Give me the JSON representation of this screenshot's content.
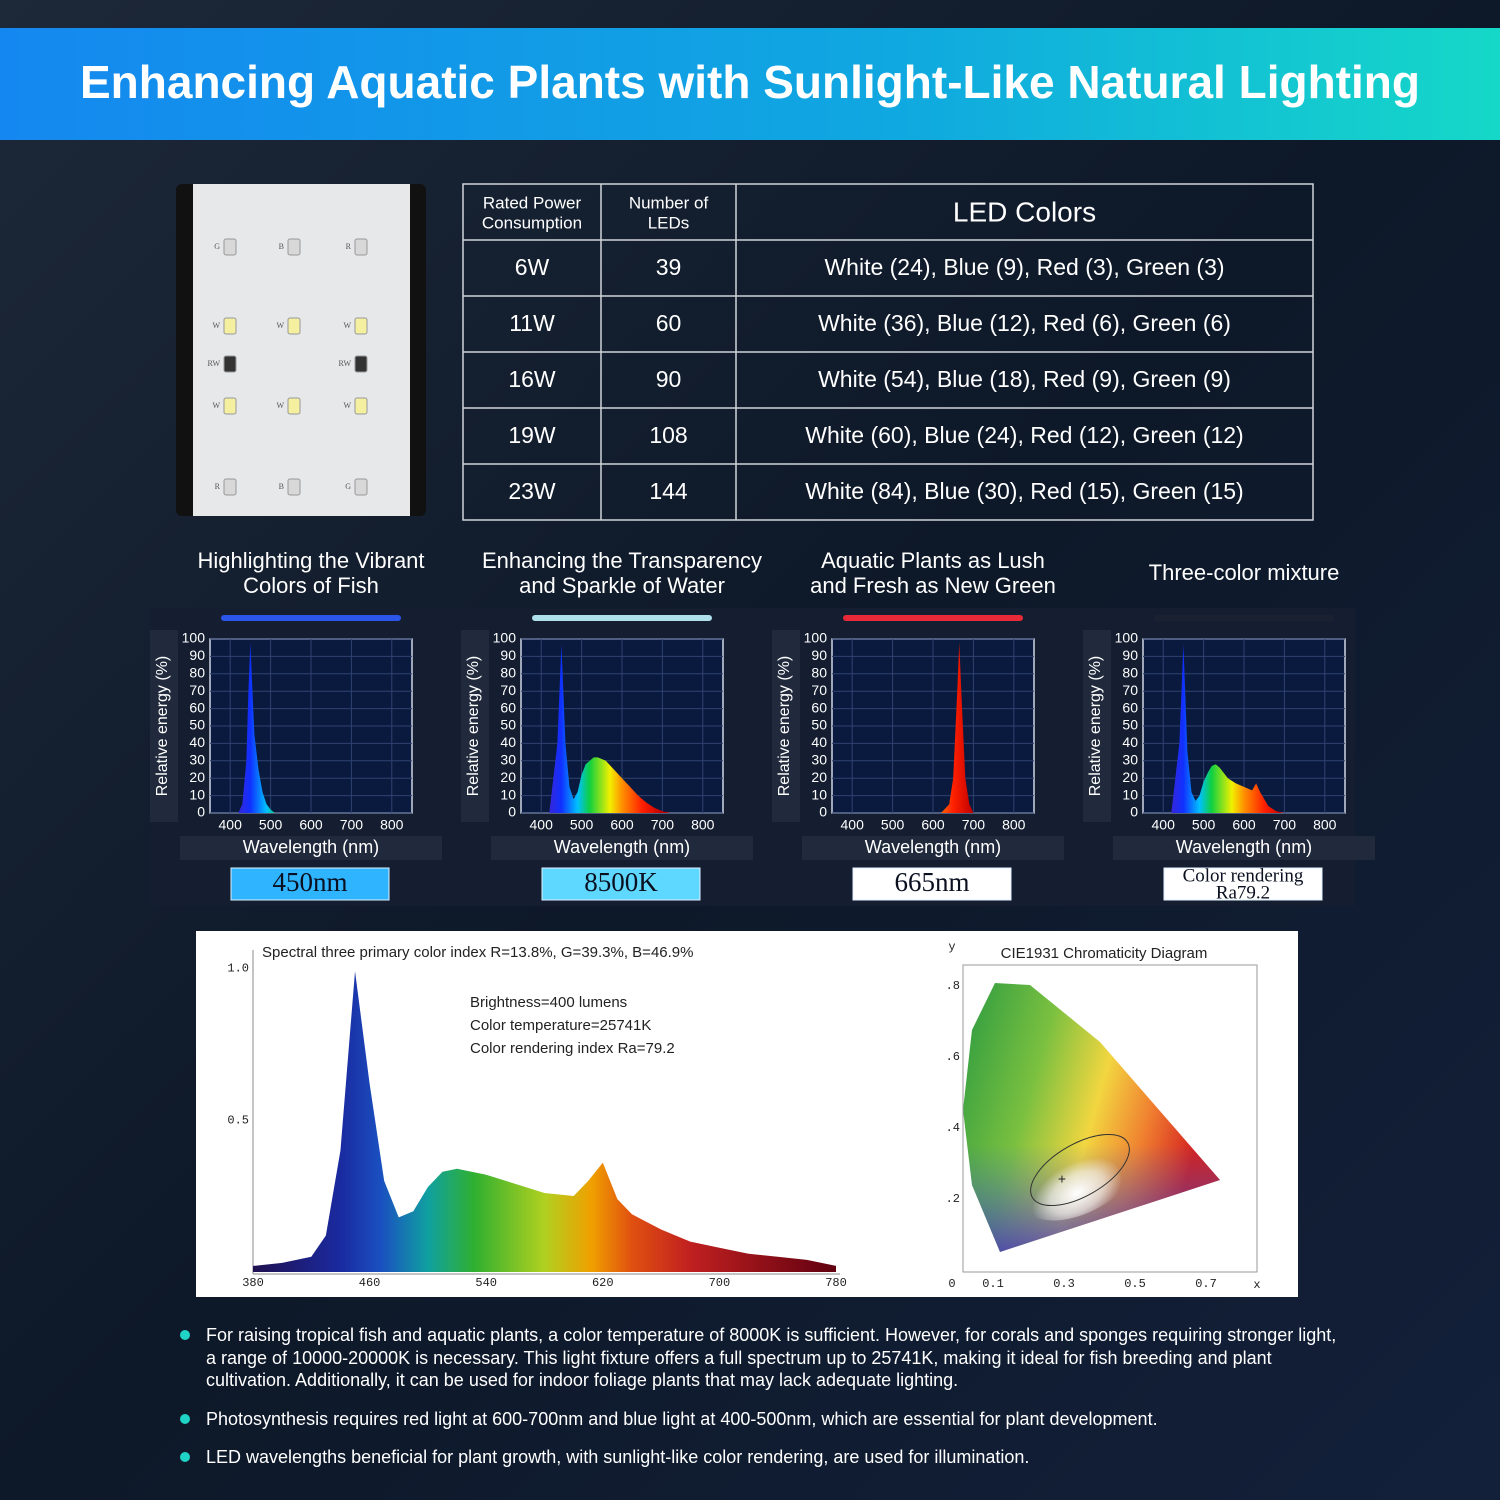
{
  "header": {
    "title": "Enhancing Aquatic Plants with Sunlight-Like Natural Lighting"
  },
  "led_panel": {
    "labels": [
      [
        "G",
        "B",
        "R"
      ],
      [
        "W",
        "W",
        "W"
      ],
      [
        "RW",
        "RW"
      ],
      [
        "W",
        "W",
        "W"
      ],
      [
        "R",
        "B",
        "G"
      ]
    ]
  },
  "table": {
    "headers": [
      [
        "Rated Power",
        "Consumption"
      ],
      [
        "Number of",
        "LEDs"
      ],
      [
        "LED Colors"
      ]
    ],
    "rows": [
      [
        "6W",
        "39",
        "White (24), Blue (9), Red (3), Green (3)"
      ],
      [
        "11W",
        "60",
        "White (36), Blue (12), Red (6), Green (6)"
      ],
      [
        "16W",
        "90",
        "White (54), Blue (18), Red (9), Green (9)"
      ],
      [
        "19W",
        "108",
        "White (60), Blue (24), Red (12), Green (12)"
      ],
      [
        "23W",
        "144",
        "White (84), Blue (30), Red (15), Green (15)"
      ]
    ]
  },
  "spectra": [
    {
      "caption": [
        "Highlighting the Vibrant",
        "Colors of Fish"
      ],
      "glow": "#2f5bff",
      "badge": [
        "450nm"
      ],
      "badge_color": "#2fb4ff",
      "y_label": "Relative energy (%)",
      "x_label": "Wavelength (nm)",
      "xlim": [
        350,
        850
      ],
      "ylim": [
        0,
        100
      ],
      "xticks": [
        400,
        500,
        600,
        700,
        800
      ],
      "yticks": [
        0,
        10,
        20,
        30,
        40,
        50,
        60,
        70,
        80,
        90,
        100
      ],
      "x": [
        420,
        430,
        440,
        445,
        450,
        455,
        460,
        470,
        480,
        490,
        500,
        510
      ],
      "values": [
        0,
        5,
        30,
        70,
        98,
        70,
        45,
        25,
        12,
        5,
        2,
        0
      ]
    },
    {
      "caption": [
        "Enhancing the Transparency",
        "and Sparkle of Water"
      ],
      "glow": "#bff4ff",
      "badge": [
        "8500K"
      ],
      "badge_color": "#5fd8ff",
      "y_label": "Relative energy (%)",
      "x_label": "Wavelength (nm)",
      "xlim": [
        350,
        850
      ],
      "ylim": [
        0,
        100
      ],
      "xticks": [
        400,
        500,
        600,
        700,
        800
      ],
      "yticks": [
        0,
        10,
        20,
        30,
        40,
        50,
        60,
        70,
        80,
        90,
        100
      ],
      "x": [
        420,
        440,
        450,
        460,
        470,
        480,
        490,
        500,
        510,
        520,
        530,
        540,
        560,
        580,
        600,
        620,
        640,
        660,
        680,
        700,
        720
      ],
      "values": [
        0,
        40,
        97,
        40,
        15,
        8,
        12,
        22,
        28,
        30,
        32,
        32,
        30,
        25,
        20,
        15,
        10,
        6,
        3,
        1,
        0
      ]
    },
    {
      "caption": [
        "Aquatic Plants as Lush",
        "and Fresh as New Green"
      ],
      "glow": "#ff2a3a",
      "badge": [
        "665nm"
      ],
      "badge_color": "#ffffff",
      "y_label": "Relative energy (%)",
      "x_label": "Wavelength (nm)",
      "xlim": [
        350,
        850
      ],
      "ylim": [
        0,
        100
      ],
      "xticks": [
        400,
        500,
        600,
        700,
        800
      ],
      "yticks": [
        0,
        10,
        20,
        30,
        40,
        50,
        60,
        70,
        80,
        90,
        100
      ],
      "x": [
        620,
        640,
        650,
        660,
        665,
        670,
        680,
        690,
        700
      ],
      "values": [
        0,
        5,
        20,
        70,
        98,
        70,
        20,
        5,
        0
      ]
    },
    {
      "caption": [
        "Three-color mixture"
      ],
      "glow": "#1b2233",
      "badge": [
        "Color rendering",
        "Ra79.2"
      ],
      "badge_color": "#ffffff",
      "y_label": "Relative energy (%)",
      "x_label": "Wavelength (nm)",
      "xlim": [
        350,
        850
      ],
      "ylim": [
        0,
        100
      ],
      "xticks": [
        400,
        500,
        600,
        700,
        800
      ],
      "yticks": [
        0,
        10,
        20,
        30,
        40,
        50,
        60,
        70,
        80,
        90,
        100
      ],
      "x": [
        420,
        440,
        450,
        460,
        470,
        480,
        490,
        500,
        510,
        520,
        530,
        540,
        560,
        580,
        600,
        620,
        630,
        640,
        660,
        680,
        700
      ],
      "values": [
        0,
        40,
        97,
        35,
        12,
        7,
        10,
        18,
        23,
        27,
        28,
        26,
        20,
        17,
        15,
        13,
        17,
        12,
        4,
        1,
        0
      ]
    }
  ],
  "spectrum_chart": {
    "title": "Spectral three primary color index R=13.8%, G=39.3%, B=46.9%",
    "notes": [
      "Brightness=400 lumens",
      "Color temperature=25741K",
      "Color rendering index Ra=79.2"
    ],
    "xlim": [
      380,
      780
    ],
    "ylim": [
      0,
      1.06
    ],
    "xticks": [
      380,
      460,
      540,
      620,
      700,
      780
    ],
    "yticks": [
      0.5,
      {
        "value": 1,
        "label": "1.0"
      }
    ],
    "x": [
      380,
      400,
      420,
      430,
      440,
      450,
      460,
      470,
      480,
      490,
      500,
      510,
      520,
      540,
      560,
      580,
      600,
      610,
      620,
      630,
      640,
      660,
      680,
      700,
      720,
      740,
      760,
      780
    ],
    "values": [
      0.02,
      0.03,
      0.05,
      0.12,
      0.4,
      0.99,
      0.62,
      0.3,
      0.18,
      0.2,
      0.28,
      0.33,
      0.34,
      0.32,
      0.29,
      0.26,
      0.25,
      0.3,
      0.36,
      0.24,
      0.19,
      0.14,
      0.1,
      0.08,
      0.06,
      0.05,
      0.04,
      0.02
    ]
  },
  "cie": {
    "title": "CIE1931 Chromaticity Diagram",
    "y_axis": "y",
    "x_axis": "x",
    "origin": "0",
    "yticks": [
      ".8",
      ".6",
      ".4",
      ".2"
    ],
    "xticks": [
      "0.1",
      "0.3",
      "0.5",
      "0.7"
    ]
  },
  "bullets": [
    "For raising tropical fish and aquatic plants, a color temperature of 8000K is sufficient. However, for corals and sponges requiring stronger light, a range of 10000-20000K is necessary. This light fixture offers a full spectrum up to 25741K, making it ideal for fish breeding and plant cultivation. Additionally, it can be used for indoor foliage plants that may lack adequate lighting.",
    "Photosynthesis requires red light at 600-700nm and blue light at 400-500nm, which are essential for plant development.",
    "LED wavelengths beneficial for plant growth, with sunlight-like color rendering, are used for illumination."
  ]
}
